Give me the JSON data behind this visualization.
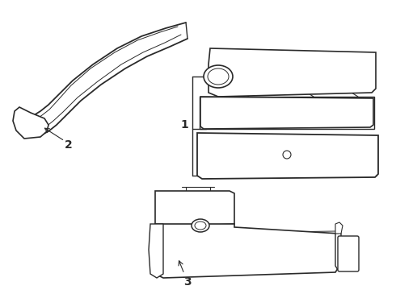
{
  "background_color": "#ffffff",
  "line_color": "#2a2a2a",
  "line_width": 1.0,
  "label_1": "1",
  "label_2": "2",
  "label_3": "3",
  "label_fontsize": 10,
  "figsize": [
    4.9,
    3.6
  ],
  "dpi": 100
}
